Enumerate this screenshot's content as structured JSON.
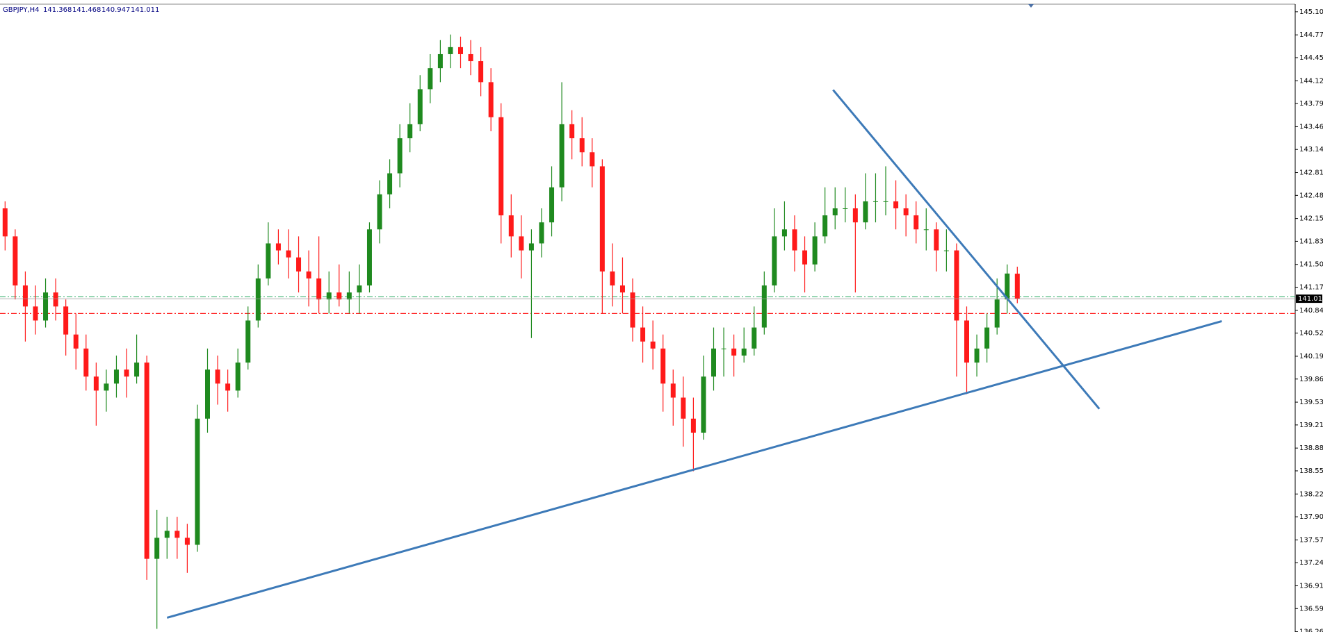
{
  "chart_data": {
    "type": "candlestick",
    "title": "GBPJPY,H4",
    "colors": {
      "up": "#1f8a1f",
      "down": "#ff1a1a",
      "trend": "#3d7ab8"
    },
    "ylim": [
      136.256,
      145.213
    ],
    "yticks": [
      145.105,
      144.775,
      {
        "value": 144.45,
        "label": "144.450"
      },
      {
        "value": 144.12,
        "label": "144.120"
      },
      143.795,
      143.465,
      {
        "value": 143.14,
        "label": "143.140"
      },
      {
        "value": 142.81,
        "label": "142.810"
      },
      142.485,
      142.155,
      {
        "value": 141.83,
        "label": "141.830"
      },
      {
        "value": 141.5,
        "label": "141.500"
      },
      141.175,
      140.845,
      {
        "value": 140.52,
        "label": "140.520"
      },
      {
        "value": 140.19,
        "label": "140.190"
      },
      139.865,
      139.535,
      {
        "value": 139.21,
        "label": "139.210"
      },
      {
        "value": 138.88,
        "label": "138.880"
      },
      138.555,
      138.225,
      {
        "value": 137.9,
        "label": "137.900"
      },
      {
        "value": 137.57,
        "label": "137.570"
      },
      137.245,
      136.915,
      {
        "value": 136.59,
        "label": "136.590"
      },
      {
        "value": 136.26,
        "label": "136.260"
      }
    ],
    "levels": [
      {
        "value": 141.04,
        "color": "#3cb371"
      },
      {
        "value": 140.8,
        "color": "#ff2020"
      }
    ],
    "trendlines": [
      {
        "x": [
          16,
          120.2
        ],
        "y": [
          136.46,
          140.69
        ]
      },
      {
        "x": [
          81.8,
          108.1
        ],
        "y": [
          143.99,
          139.44
        ]
      }
    ],
    "candles": [
      [
        142.3,
        142.4,
        141.7,
        141.9
      ],
      [
        141.9,
        142.0,
        141.0,
        141.2
      ],
      [
        141.2,
        141.4,
        140.4,
        140.9
      ],
      [
        140.9,
        141.2,
        140.5,
        140.7
      ],
      [
        140.7,
        141.3,
        140.6,
        141.1
      ],
      [
        141.1,
        141.3,
        140.7,
        140.9
      ],
      [
        140.9,
        141.0,
        140.2,
        140.5
      ],
      [
        140.5,
        140.8,
        140.0,
        140.3
      ],
      [
        140.3,
        140.5,
        139.7,
        139.9
      ],
      [
        139.9,
        140.1,
        139.2,
        139.7
      ],
      [
        139.7,
        140.0,
        139.4,
        139.8
      ],
      [
        139.8,
        140.2,
        139.6,
        140.0
      ],
      [
        140.0,
        140.3,
        139.6,
        139.9
      ],
      [
        139.9,
        140.5,
        139.8,
        140.1
      ],
      [
        140.1,
        140.2,
        137.0,
        137.3
      ],
      [
        137.3,
        138.0,
        136.3,
        137.6
      ],
      [
        137.6,
        137.9,
        137.3,
        137.7
      ],
      [
        137.7,
        137.9,
        137.3,
        137.6
      ],
      [
        137.6,
        137.8,
        137.1,
        137.5
      ],
      [
        137.5,
        139.5,
        137.4,
        139.3
      ],
      [
        139.3,
        140.3,
        139.1,
        140.0
      ],
      [
        140.0,
        140.2,
        139.5,
        139.8
      ],
      [
        139.8,
        140.0,
        139.4,
        139.7
      ],
      [
        139.7,
        140.3,
        139.6,
        140.1
      ],
      [
        140.1,
        140.9,
        140.0,
        140.7
      ],
      [
        140.7,
        141.5,
        140.6,
        141.3
      ],
      [
        141.3,
        142.1,
        141.2,
        141.8
      ],
      [
        141.8,
        142.0,
        141.5,
        141.7
      ],
      [
        141.7,
        142.0,
        141.3,
        141.6
      ],
      [
        141.6,
        141.9,
        141.1,
        141.4
      ],
      [
        141.4,
        141.7,
        140.9,
        141.3
      ],
      [
        141.3,
        141.9,
        140.8,
        141.0
      ],
      [
        141.0,
        141.4,
        140.8,
        141.1
      ],
      [
        141.1,
        141.5,
        140.9,
        141.0
      ],
      [
        141.0,
        141.4,
        140.8,
        141.1
      ],
      [
        141.1,
        141.5,
        140.8,
        141.2
      ],
      [
        141.2,
        142.1,
        141.1,
        142.0
      ],
      [
        142.0,
        142.7,
        141.8,
        142.5
      ],
      [
        142.5,
        143.0,
        142.3,
        142.8
      ],
      [
        142.8,
        143.5,
        142.6,
        143.3
      ],
      [
        143.3,
        143.8,
        143.1,
        143.5
      ],
      [
        143.5,
        144.2,
        143.4,
        144.0
      ],
      [
        144.0,
        144.5,
        143.8,
        144.3
      ],
      [
        144.3,
        144.7,
        144.1,
        144.5
      ],
      [
        144.5,
        144.78,
        144.3,
        144.6
      ],
      [
        144.6,
        144.75,
        144.3,
        144.5
      ],
      [
        144.5,
        144.7,
        144.2,
        144.4
      ],
      [
        144.4,
        144.6,
        143.9,
        144.1
      ],
      [
        144.1,
        144.3,
        143.4,
        143.6
      ],
      [
        143.6,
        143.8,
        141.8,
        142.2
      ],
      [
        142.2,
        142.5,
        141.6,
        141.9
      ],
      [
        141.9,
        142.2,
        141.3,
        141.7
      ],
      [
        141.7,
        142.0,
        140.45,
        141.8
      ],
      [
        141.8,
        142.3,
        141.6,
        142.1
      ],
      [
        142.1,
        142.9,
        141.9,
        142.6
      ],
      [
        142.6,
        144.1,
        142.4,
        143.5
      ],
      [
        143.5,
        143.7,
        143.0,
        143.3
      ],
      [
        143.3,
        143.6,
        142.9,
        143.1
      ],
      [
        143.1,
        143.3,
        142.6,
        142.9
      ],
      [
        142.9,
        143.0,
        140.8,
        141.4
      ],
      [
        141.4,
        141.8,
        140.9,
        141.2
      ],
      [
        141.2,
        141.6,
        140.8,
        141.1
      ],
      [
        141.1,
        141.3,
        140.4,
        140.6
      ],
      [
        140.6,
        140.9,
        140.1,
        140.4
      ],
      [
        140.4,
        140.7,
        140.0,
        140.3
      ],
      [
        140.3,
        140.5,
        139.4,
        139.8
      ],
      [
        139.8,
        140.0,
        139.2,
        139.6
      ],
      [
        139.6,
        139.9,
        138.9,
        139.3
      ],
      [
        139.3,
        139.6,
        138.55,
        139.1
      ],
      [
        139.1,
        140.2,
        139.0,
        139.9
      ],
      [
        139.9,
        140.6,
        139.7,
        140.3
      ],
      [
        140.3,
        140.6,
        139.9,
        140.3
      ],
      [
        140.3,
        140.5,
        139.9,
        140.2
      ],
      [
        140.2,
        140.6,
        140.1,
        140.3
      ],
      [
        140.3,
        140.9,
        140.2,
        140.6
      ],
      [
        140.6,
        141.4,
        140.5,
        141.2
      ],
      [
        141.2,
        142.3,
        141.1,
        141.9
      ],
      [
        141.9,
        142.4,
        141.7,
        142.0
      ],
      [
        142.0,
        142.2,
        141.4,
        141.7
      ],
      [
        141.7,
        141.9,
        141.1,
        141.5
      ],
      [
        141.5,
        142.1,
        141.4,
        141.9
      ],
      [
        141.9,
        142.6,
        141.8,
        142.2
      ],
      [
        142.2,
        142.6,
        142.0,
        142.3
      ],
      [
        142.3,
        142.6,
        142.1,
        142.3
      ],
      [
        142.3,
        142.5,
        141.1,
        142.1
      ],
      [
        142.1,
        142.8,
        142.0,
        142.4
      ],
      [
        142.4,
        142.8,
        142.1,
        142.4
      ],
      [
        142.4,
        142.9,
        142.2,
        142.4
      ],
      [
        142.4,
        142.7,
        142.0,
        142.3
      ],
      [
        142.3,
        142.5,
        141.9,
        142.2
      ],
      [
        142.2,
        142.4,
        141.8,
        142.0
      ],
      [
        142.0,
        142.3,
        141.7,
        142.0
      ],
      [
        142.0,
        142.1,
        141.4,
        141.7
      ],
      [
        141.7,
        142.0,
        141.4,
        141.7
      ],
      [
        141.7,
        141.8,
        139.9,
        140.7
      ],
      [
        140.7,
        140.9,
        139.65,
        140.1
      ],
      [
        140.1,
        140.5,
        139.9,
        140.3
      ],
      [
        140.3,
        140.8,
        140.1,
        140.6
      ],
      [
        140.6,
        141.3,
        140.5,
        141.0
      ],
      [
        141.0,
        141.5,
        140.8,
        141.37
      ],
      [
        141.368,
        141.468,
        140.947,
        141.011
      ]
    ]
  }
}
